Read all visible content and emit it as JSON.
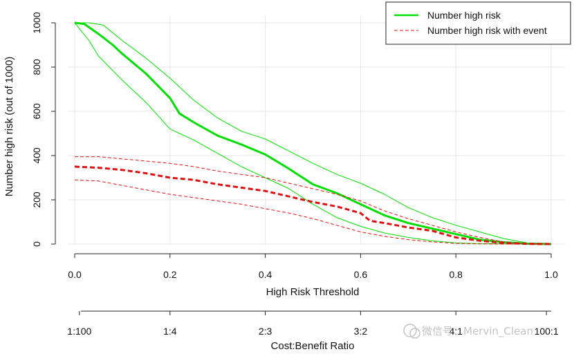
{
  "chart_data": {
    "type": "line",
    "xlabel": "High Risk Threshold",
    "ylabel": "Number high risk (out of 1000)",
    "xlim": [
      0.0,
      1.0
    ],
    "ylim": [
      0,
      1000
    ],
    "grid": true,
    "legend_position": "top-right",
    "x_ticks": [
      "0.0",
      "0.2",
      "0.4",
      "0.6",
      "0.8",
      "1.0"
    ],
    "y_ticks": [
      "0",
      "200",
      "400",
      "600",
      "800",
      "1000"
    ],
    "secondary_axis": {
      "label": "Cost:Benefit Ratio",
      "ticks": [
        {
          "x": 0.0099,
          "label": "1:100"
        },
        {
          "x": 0.2,
          "label": "1:4"
        },
        {
          "x": 0.4,
          "label": "2:3"
        },
        {
          "x": 0.6,
          "label": "3:2"
        },
        {
          "x": 0.8,
          "label": "4:1"
        },
        {
          "x": 0.99,
          "label": "100:1"
        }
      ]
    },
    "series": [
      {
        "name": "Number high risk",
        "color": "#00dd00",
        "style": "solid",
        "emphasis": "thick",
        "x": [
          0.0,
          0.02,
          0.05,
          0.08,
          0.1,
          0.15,
          0.2,
          0.22,
          0.25,
          0.3,
          0.35,
          0.4,
          0.45,
          0.5,
          0.55,
          0.6,
          0.65,
          0.7,
          0.75,
          0.8,
          0.85,
          0.9,
          0.95,
          1.0
        ],
        "y": [
          1000,
          995,
          950,
          900,
          860,
          770,
          660,
          590,
          550,
          490,
          450,
          405,
          340,
          270,
          230,
          180,
          130,
          95,
          70,
          45,
          20,
          8,
          2,
          0
        ]
      },
      {
        "name": "",
        "color": "#00dd00",
        "style": "solid",
        "emphasis": "thin",
        "x": [
          0.0,
          0.03,
          0.06,
          0.1,
          0.15,
          0.2,
          0.25,
          0.3,
          0.35,
          0.4,
          0.45,
          0.5,
          0.55,
          0.6,
          0.65,
          0.7,
          0.75,
          0.8,
          0.85,
          0.9,
          0.95,
          1.0
        ],
        "y": [
          1000,
          1000,
          990,
          920,
          840,
          750,
          650,
          570,
          510,
          475,
          420,
          365,
          315,
          275,
          225,
          165,
          120,
          85,
          55,
          25,
          5,
          0
        ]
      },
      {
        "name": "",
        "color": "#00dd00",
        "style": "solid",
        "emphasis": "thin",
        "x": [
          0.0,
          0.03,
          0.05,
          0.1,
          0.15,
          0.2,
          0.25,
          0.3,
          0.35,
          0.4,
          0.45,
          0.5,
          0.55,
          0.6,
          0.65,
          0.7,
          0.75,
          0.8,
          0.85,
          0.9,
          0.95,
          1.0
        ],
        "y": [
          1000,
          920,
          850,
          740,
          640,
          520,
          470,
          410,
          350,
          300,
          250,
          180,
          120,
          80,
          50,
          30,
          15,
          5,
          2,
          1,
          0,
          0
        ]
      },
      {
        "name": "Number high risk with event",
        "color": "#dd1111",
        "style": "dashed",
        "emphasis": "thick",
        "x": [
          0.0,
          0.05,
          0.1,
          0.15,
          0.2,
          0.25,
          0.3,
          0.35,
          0.4,
          0.45,
          0.5,
          0.55,
          0.6,
          0.62,
          0.65,
          0.7,
          0.75,
          0.8,
          0.85,
          0.9,
          0.95,
          1.0
        ],
        "y": [
          350,
          345,
          335,
          320,
          300,
          290,
          270,
          255,
          240,
          215,
          190,
          170,
          140,
          105,
          95,
          75,
          60,
          30,
          15,
          5,
          1,
          0
        ]
      },
      {
        "name": "",
        "color": "#dd1111",
        "style": "dashed",
        "emphasis": "thin",
        "x": [
          0.0,
          0.05,
          0.1,
          0.15,
          0.2,
          0.25,
          0.3,
          0.35,
          0.4,
          0.45,
          0.5,
          0.55,
          0.6,
          0.65,
          0.7,
          0.75,
          0.8,
          0.85,
          0.9,
          0.95,
          1.0
        ],
        "y": [
          395,
          395,
          385,
          375,
          365,
          350,
          330,
          315,
          300,
          275,
          250,
          225,
          195,
          150,
          115,
          85,
          55,
          30,
          10,
          2,
          0
        ]
      },
      {
        "name": "",
        "color": "#dd1111",
        "style": "dashed",
        "emphasis": "thin",
        "x": [
          0.0,
          0.05,
          0.1,
          0.15,
          0.2,
          0.25,
          0.3,
          0.35,
          0.4,
          0.45,
          0.5,
          0.55,
          0.6,
          0.65,
          0.7,
          0.75,
          0.8,
          0.85,
          0.9,
          0.95,
          1.0
        ],
        "y": [
          290,
          285,
          265,
          245,
          225,
          210,
          195,
          180,
          160,
          140,
          115,
          85,
          55,
          35,
          20,
          10,
          3,
          1,
          0,
          0,
          0
        ]
      }
    ],
    "legend": [
      {
        "label": "Number high risk",
        "color": "#00dd00",
        "style": "solid"
      },
      {
        "label": "Number high risk with event",
        "color": "#dd1111",
        "style": "dashed"
      }
    ]
  },
  "watermark": "微信号：Mervin_Clean"
}
